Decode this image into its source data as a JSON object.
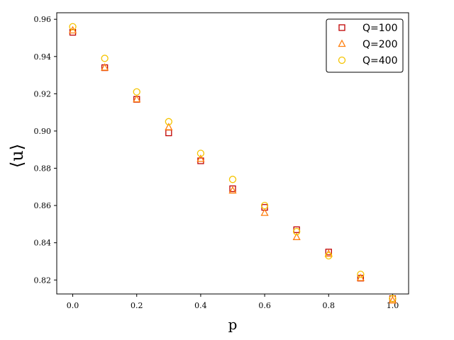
{
  "chart_data": {
    "type": "scatter",
    "xlabel": "p",
    "ylabel": "⟨u⟩",
    "xlim": [
      -0.05,
      1.05
    ],
    "ylim": [
      0.8125,
      0.9635
    ],
    "xticks": [
      0.0,
      0.2,
      0.4,
      0.6,
      0.8,
      1.0
    ],
    "xtick_labels": [
      "0.0",
      "0.2",
      "0.4",
      "0.6",
      "0.8",
      "1.0"
    ],
    "yticks": [
      0.82,
      0.84,
      0.86,
      0.88,
      0.9,
      0.92,
      0.94,
      0.96
    ],
    "ytick_labels": [
      "0.82",
      "0.84",
      "0.86",
      "0.88",
      "0.90",
      "0.92",
      "0.94",
      "0.96"
    ],
    "grid": false,
    "legend_position": "top-right",
    "x": [
      0.0,
      0.1,
      0.2,
      0.3,
      0.4,
      0.5,
      0.6,
      0.7,
      0.8,
      0.9,
      1.0
    ],
    "series": [
      {
        "name": "Q=100",
        "marker": "square",
        "color": "#c00000",
        "values": [
          0.953,
          0.934,
          0.917,
          0.899,
          0.884,
          0.869,
          0.859,
          0.847,
          0.835,
          0.821,
          0.81
        ]
      },
      {
        "name": "Q=200",
        "marker": "triangle",
        "color": "#ff7f0e",
        "values": [
          0.954,
          0.934,
          0.917,
          0.902,
          0.885,
          0.868,
          0.856,
          0.843,
          0.834,
          0.821,
          0.809
        ]
      },
      {
        "name": "Q=400",
        "marker": "circle",
        "color": "#f5c400",
        "values": [
          0.956,
          0.939,
          0.921,
          0.905,
          0.888,
          0.874,
          0.86,
          0.846,
          0.833,
          0.823,
          0.81
        ]
      }
    ]
  }
}
